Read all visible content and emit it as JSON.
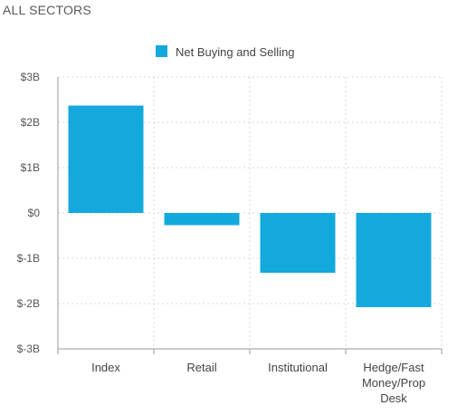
{
  "page": {
    "title": "ALL SECTORS"
  },
  "chart_data": {
    "type": "bar",
    "categories": [
      [
        "Index"
      ],
      [
        "Retail"
      ],
      [
        "Institutional"
      ],
      [
        "Hedge/Fast",
        "Money/Prop",
        "Desk"
      ]
    ],
    "series": [
      {
        "name": "Net Buying and Selling",
        "color": "#13a9dc",
        "values": [
          2.37,
          -0.27,
          -1.32,
          -2.08
        ]
      }
    ],
    "ylim": [
      -3,
      3
    ],
    "yticks": [
      3,
      2,
      1,
      0,
      -1,
      -2,
      -3
    ],
    "ytick_labels": [
      "$3B",
      "$2B",
      "$1B",
      "$0",
      "$-1B",
      "$-2B",
      "$-3B"
    ],
    "xlabel": "",
    "ylabel": "",
    "grid": true,
    "legend_position": "top-center"
  }
}
